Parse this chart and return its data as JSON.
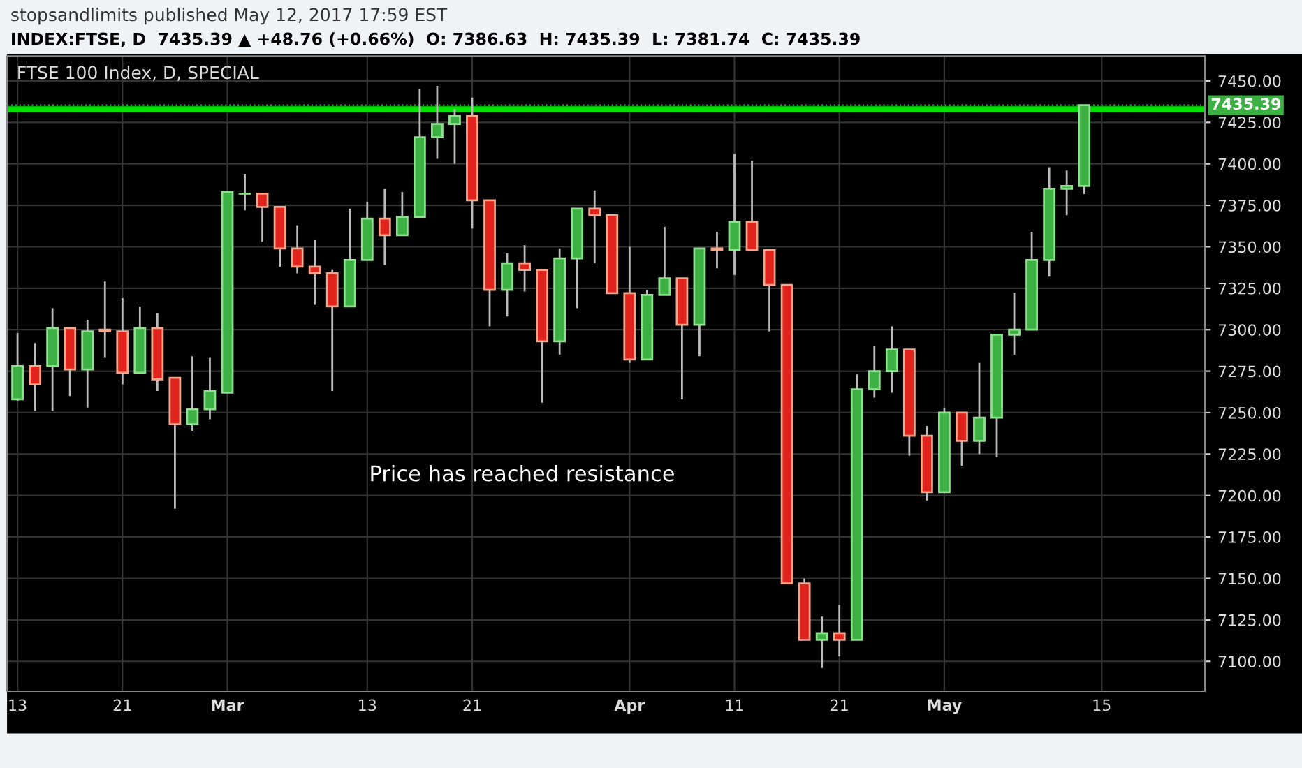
{
  "chart_data": {
    "type": "candlestick",
    "title": "FTSE 100 Index, D, SPECIAL",
    "annotations": [
      "stopsandlimits published May 12, 2017 17:59 EST",
      "INDEX:FTSE, D  7435.39 ▲ +48.76 (+0.66%)  O: 7386.63  H: 7435.39  L: 7381.74  C: 7435.39",
      "Price has reached resistance"
    ],
    "categories": [
      "13",
      null,
      null,
      null,
      null,
      null,
      "21",
      null,
      null,
      null,
      null,
      null,
      "Mar",
      null,
      null,
      null,
      null,
      null,
      null,
      null,
      "13",
      null,
      null,
      null,
      null,
      null,
      "21",
      null,
      null,
      null,
      null,
      null,
      null,
      null,
      null,
      "Apr",
      null,
      null,
      null,
      null,
      null,
      "11",
      null,
      null,
      null,
      null,
      null,
      "21",
      null,
      null,
      null,
      null,
      null,
      "May",
      null,
      null,
      null,
      null,
      null,
      null,
      null,
      null,
      "15",
      null,
      null,
      null,
      null,
      null
    ],
    "ohlc": [
      [
        7258,
        7298,
        7257,
        7278
      ],
      [
        7278,
        7292,
        7251,
        7267
      ],
      [
        7278,
        7313,
        7251,
        7301
      ],
      [
        7301,
        7301,
        7260,
        7276
      ],
      [
        7276,
        7306,
        7253,
        7299
      ],
      [
        7300,
        7329,
        7283,
        7299
      ],
      [
        7299,
        7319,
        7267,
        7274
      ],
      [
        7274,
        7314,
        7274,
        7301
      ],
      [
        7301,
        7310,
        7263,
        7270
      ],
      [
        7271,
        7271,
        7192,
        7243
      ],
      [
        7243,
        7284,
        7239,
        7252
      ],
      [
        7252,
        7283,
        7246,
        7263
      ],
      [
        7262,
        7383,
        7262,
        7383
      ],
      [
        7382,
        7394,
        7372,
        7382
      ],
      [
        7382,
        7382,
        7353,
        7374
      ],
      [
        7374,
        7374,
        7338,
        7349
      ],
      [
        7349,
        7363,
        7334,
        7338
      ],
      [
        7338,
        7354,
        7315,
        7334
      ],
      [
        7334,
        7336,
        7263,
        7314
      ],
      [
        7314,
        7373,
        7314,
        7342
      ],
      [
        7342,
        7377,
        7342,
        7367
      ],
      [
        7367,
        7385,
        7339,
        7357
      ],
      [
        7357,
        7383,
        7357,
        7368
      ],
      [
        7368,
        7445,
        7368,
        7416
      ],
      [
        7416,
        7447,
        7403,
        7424
      ],
      [
        7424,
        7433,
        7400,
        7429
      ],
      [
        7429,
        7440,
        7361,
        7378
      ],
      [
        7378,
        7378,
        7302,
        7324
      ],
      [
        7324,
        7346,
        7308,
        7340
      ],
      [
        7340,
        7351,
        7323,
        7336
      ],
      [
        7336,
        7336,
        7256,
        7293
      ],
      [
        7293,
        7349,
        7285,
        7343
      ],
      [
        7343,
        7373,
        7313,
        7373
      ],
      [
        7373,
        7384,
        7340,
        7369
      ],
      [
        7369,
        7369,
        7322,
        7322
      ],
      [
        7322,
        7350,
        7280,
        7282
      ],
      [
        7282,
        7324,
        7282,
        7321
      ],
      [
        7321,
        7362,
        7321,
        7331
      ],
      [
        7331,
        7331,
        7258,
        7303
      ],
      [
        7303,
        7349,
        7284,
        7349
      ],
      [
        7349,
        7359,
        7337,
        7348
      ],
      [
        7348,
        7406,
        7333,
        7365
      ],
      [
        7365,
        7402,
        7348,
        7348
      ],
      [
        7348,
        7348,
        7299,
        7327
      ],
      [
        7327,
        7327,
        7147,
        7147
      ],
      [
        7147,
        7150,
        7113,
        7113
      ],
      [
        7113,
        7127,
        7096,
        7117
      ],
      [
        7117,
        7134,
        7103,
        7113
      ],
      [
        7113,
        7273,
        7113,
        7264
      ],
      [
        7264,
        7290,
        7259,
        7275
      ],
      [
        7275,
        7302,
        7262,
        7288
      ],
      [
        7288,
        7288,
        7224,
        7236
      ],
      [
        7236,
        7242,
        7197,
        7202
      ],
      [
        7202,
        7253,
        7202,
        7250
      ],
      [
        7250,
        7250,
        7218,
        7233
      ],
      [
        7233,
        7280,
        7225,
        7247
      ],
      [
        7247,
        7297,
        7223,
        7297
      ],
      [
        7297,
        7322,
        7285,
        7300
      ],
      [
        7300,
        7359,
        7300,
        7342
      ],
      [
        7342,
        7398,
        7332,
        7385
      ],
      [
        7385,
        7396,
        7369,
        7386.63
      ],
      [
        7386.63,
        7435.39,
        7381.74,
        7435.39
      ],
      null,
      null,
      null,
      null,
      null,
      null
    ],
    "ylim": [
      7082,
      7465
    ],
    "yticks": [
      {
        "value": 7100,
        "label": "7100.00"
      },
      {
        "value": 7125,
        "label": "7125.00"
      },
      {
        "value": 7150,
        "label": "7150.00"
      },
      {
        "value": 7175,
        "label": "7175.00"
      },
      {
        "value": 7200,
        "label": "7200.00"
      },
      {
        "value": 7225,
        "label": "7225.00"
      },
      {
        "value": 7250,
        "label": "7250.00"
      },
      {
        "value": 7275,
        "label": "7275.00"
      },
      {
        "value": 7300,
        "label": "7300.00"
      },
      {
        "value": 7325,
        "label": "7325.00"
      },
      {
        "value": 7350,
        "label": "7350.00"
      },
      {
        "value": 7375,
        "label": "7375.00"
      },
      {
        "value": 7400,
        "label": "7400.00"
      },
      {
        "value": 7425,
        "label": "7425.00"
      },
      {
        "value": 7450,
        "label": "7450.00"
      }
    ],
    "ref_lines": [
      {
        "axis": "y",
        "value": 7433,
        "color": "#00e600",
        "line_style": "solid"
      },
      {
        "axis": "y",
        "value": 7435.39,
        "label": "7435.39",
        "color": "#3cb043",
        "line_style": "dotted"
      }
    ],
    "grid": true
  }
}
